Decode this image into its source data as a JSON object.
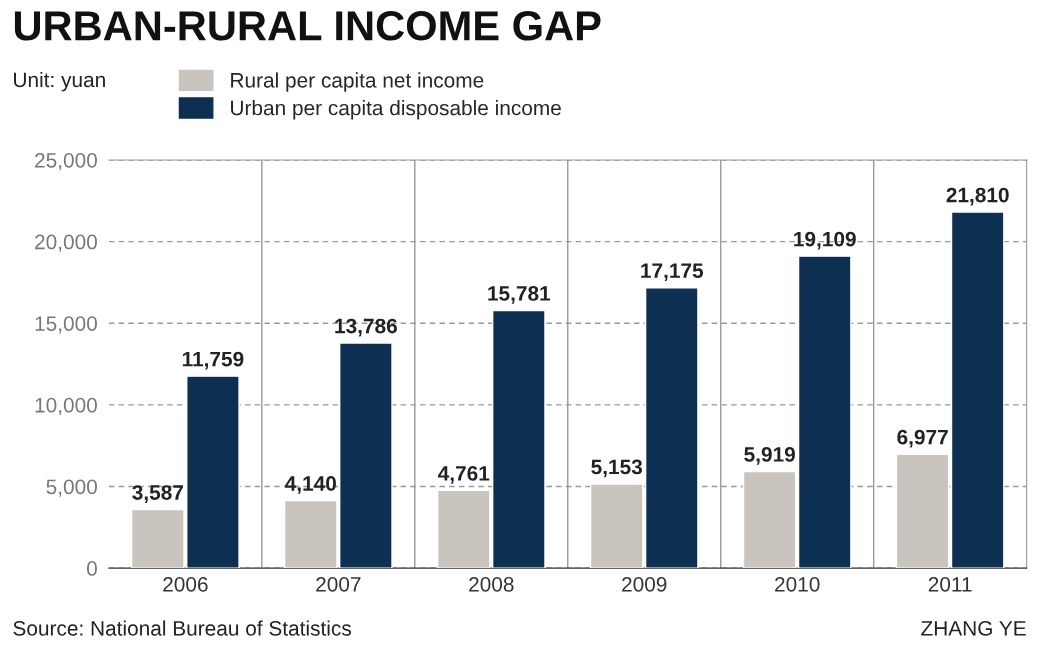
{
  "chart_data": {
    "type": "bar",
    "title": "URBAN-RURAL INCOME GAP",
    "categories": [
      "2006",
      "2007",
      "2008",
      "2009",
      "2010",
      "2011"
    ],
    "series": [
      {
        "name": "Rural per capita net income",
        "color": "#c9c4be",
        "values": [
          3587,
          4140,
          4761,
          5153,
          5919,
          6977
        ],
        "value_labels": [
          "3,587",
          "4,140",
          "4,761",
          "5,153",
          "5,919",
          "6,977"
        ]
      },
      {
        "name": "Urban per capita disposable income",
        "color": "#0d2f52",
        "values": [
          11759,
          13786,
          15781,
          17175,
          19109,
          21810
        ],
        "value_labels": [
          "11,759",
          "13,786",
          "15,781",
          "17,175",
          "19,109",
          "21,810"
        ]
      }
    ],
    "ylim": [
      0,
      25000
    ],
    "yticks": [
      {
        "value": 0,
        "label": "0"
      },
      {
        "value": 5000,
        "label": "5,000"
      },
      {
        "value": 10000,
        "label": "10,000"
      },
      {
        "value": 15000,
        "label": "15,000"
      },
      {
        "value": 20000,
        "label": "20,000"
      },
      {
        "value": 25000,
        "label": "25,000"
      }
    ],
    "grid": true,
    "legend": "top left",
    "annotations": [
      "Unit: yuan",
      "Source: National Bureau of Statistics",
      "ZHANG YE"
    ]
  }
}
